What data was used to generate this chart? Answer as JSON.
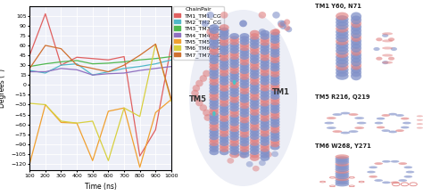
{
  "xlabel": "Time (ns)",
  "ylabel": "Degrees (°)",
  "xlim": [
    100,
    1000
  ],
  "ylim": [
    -130,
    120
  ],
  "xticks": [
    100,
    200,
    300,
    400,
    500,
    600,
    700,
    800,
    900,
    1000
  ],
  "yticks": [
    -120,
    -105,
    -90,
    -75,
    -60,
    -45,
    -30,
    -15,
    0,
    15,
    30,
    45,
    60,
    75,
    90,
    105
  ],
  "bg_color": "#eef0f8",
  "grid_color": "#ffffff",
  "series": [
    {
      "label": "TM1_TM1_CG",
      "color": "#e06060",
      "x": [
        100,
        200,
        300,
        400,
        500,
        600,
        700,
        800,
        900,
        1000
      ],
      "y": [
        45,
        108,
        30,
        42,
        40,
        38,
        43,
        -108,
        -68,
        60
      ]
    },
    {
      "label": "TM2_TM2_CG",
      "color": "#50b8c8",
      "x": [
        100,
        200,
        300,
        400,
        500,
        600,
        700,
        800,
        900,
        1000
      ],
      "y": [
        22,
        18,
        30,
        32,
        15,
        20,
        25,
        28,
        32,
        38
      ]
    },
    {
      "label": "TM3_TM3_CG",
      "color": "#50b850",
      "x": [
        100,
        200,
        300,
        400,
        500,
        600,
        700,
        800,
        900,
        1000
      ],
      "y": [
        28,
        32,
        35,
        37,
        32,
        33,
        35,
        38,
        40,
        43
      ]
    },
    {
      "label": "TM4_TM4_CG",
      "color": "#9070c0",
      "x": [
        100,
        200,
        300,
        400,
        500,
        600,
        700,
        800,
        900,
        1000
      ],
      "y": [
        20,
        20,
        25,
        23,
        15,
        17,
        18,
        22,
        25,
        28
      ]
    },
    {
      "label": "TM5_TM5_CG",
      "color": "#f0a030",
      "x": [
        100,
        200,
        300,
        400,
        500,
        600,
        700,
        800,
        900,
        1000
      ],
      "y": [
        -120,
        -30,
        -57,
        -58,
        -115,
        -40,
        -35,
        -125,
        -42,
        -22
      ]
    },
    {
      "label": "TM6_TM6_CG",
      "color": "#d8d040",
      "x": [
        100,
        200,
        300,
        400,
        500,
        600,
        700,
        800,
        900,
        1000
      ],
      "y": [
        -28,
        -30,
        -55,
        -58,
        -55,
        -115,
        -35,
        -48,
        62,
        -25
      ]
    },
    {
      "label": "TM7_TM7_CG",
      "color": "#d07030",
      "x": [
        100,
        200,
        300,
        400,
        500,
        600,
        700,
        800,
        900,
        1000
      ],
      "y": [
        25,
        60,
        55,
        30,
        25,
        20,
        30,
        45,
        62,
        -22
      ]
    }
  ],
  "legend_title": "ChainPair",
  "legend_fontsize": 4.5,
  "tick_fontsize": 4.5,
  "label_fontsize": 5.5,
  "linewidth": 0.9,
  "blue_color": "#8090c8",
  "red_color": "#e08080",
  "cyan_color": "#40c8c8",
  "annotation_labels": [
    "TM1 Y60, N71",
    "TM5 R216, Q219",
    "TM6 W268, Y271"
  ],
  "main_labels": [
    "TM1",
    "TM5"
  ]
}
